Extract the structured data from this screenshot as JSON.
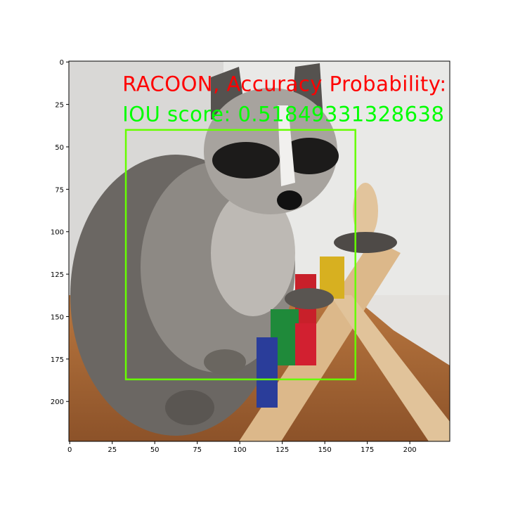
{
  "chart_data": {
    "type": "image",
    "xlim": [
      -0.5,
      223.5
    ],
    "ylim": [
      223.5,
      -0.5
    ],
    "xticks": [
      0,
      25,
      50,
      75,
      100,
      125,
      150,
      175,
      200
    ],
    "yticks": [
      0,
      25,
      50,
      75,
      100,
      125,
      150,
      175,
      200
    ],
    "box": {
      "x0": 33,
      "y0": 40,
      "x1": 168,
      "y1": 187,
      "color": "#66ff00"
    },
    "annotations": [
      {
        "text": "RACOON, Accuracy Probability:",
        "x": 31,
        "y": 17,
        "color": "#ff0000"
      },
      {
        "text": "IOU score: 0.51849331328638",
        "x": 31,
        "y": 35,
        "color": "#00ff00"
      }
    ]
  }
}
